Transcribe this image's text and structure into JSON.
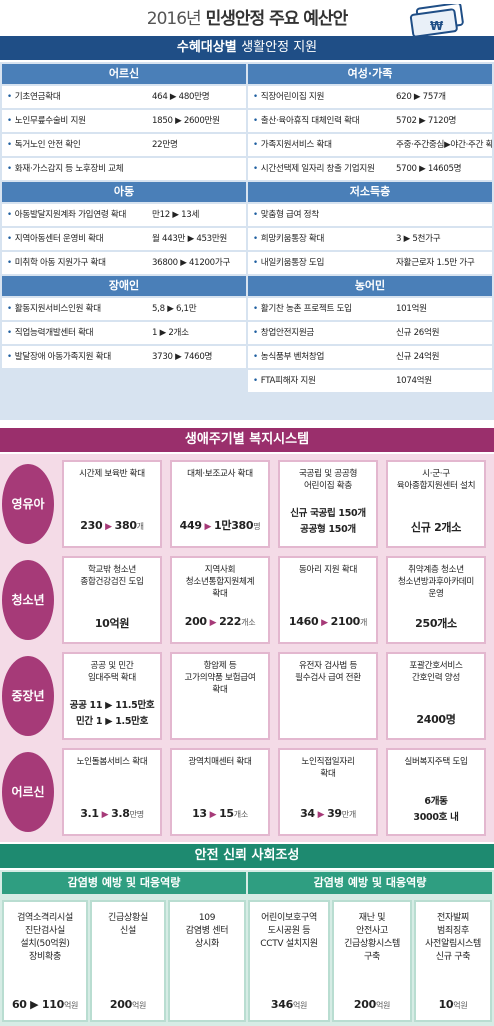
{
  "header": {
    "year": "2016년",
    "title": "민생안정 주요 예산안",
    "money_icon": "won-banknote-icon"
  },
  "sec1": {
    "banner": {
      "bold": "수혜대상별",
      "light": "생활안정 지원"
    },
    "left": [
      {
        "title": "어르신",
        "rows": [
          [
            "기초연금확대",
            "464 ▶ 480만명"
          ],
          [
            "노인무릎수술비 지원",
            "1850 ▶ 2600만원"
          ],
          [
            "독거노인 안전 확인",
            "22만명"
          ],
          [
            "화재·가스감지 등 노후장비 교체",
            ""
          ]
        ]
      },
      {
        "title": "아동",
        "rows": [
          [
            "아동발달지원계좌 가입연령 확대",
            "만12 ▶ 13세"
          ],
          [
            "지역아동센터 운영비 확대",
            "월 443만 ▶ 453만원"
          ],
          [
            "미취학 아동 지원가구 확대",
            "36800 ▶ 41200가구"
          ]
        ]
      },
      {
        "title": "장애인",
        "rows": [
          [
            "활동지원서비스인원 확대",
            "5,8 ▶ 6,1만"
          ],
          [
            "직업능력개발센터 확대",
            "1 ▶ 2개소"
          ],
          [
            "발달장애 아동가족지원 확대",
            "3730 ▶ 7460명"
          ]
        ]
      }
    ],
    "right": [
      {
        "title": "여성·가족",
        "rows": [
          [
            "직장어린이집 지원",
            "620 ▶ 757개"
          ],
          [
            "출산·육아휴직 대체인력 확대",
            "5702 ▶ 7120명"
          ],
          [
            "가족지원서비스 확대",
            "주중·주간중심▶야간·주간 확대"
          ],
          [
            "시간선택제 일자리 창출 기업지원",
            "5700 ▶ 14605명"
          ]
        ]
      },
      {
        "title": "저소득층",
        "rows": [
          [
            "맞춤형 급여 정착",
            ""
          ],
          [
            "희망키움통장 확대",
            "3 ▶ 5천가구"
          ],
          [
            "내일키움통장 도입",
            "자활근로자 1.5만 가구"
          ]
        ]
      },
      {
        "title": "농어민",
        "rows": [
          [
            "활기찬 농촌 프로젝트 도입",
            "101억원"
          ],
          [
            "창업안전지원금",
            "신규 26억원"
          ],
          [
            "농식품부 벤처창업",
            "신규 24억원"
          ],
          [
            "FTA피해자 지원",
            "1074억원"
          ]
        ]
      }
    ]
  },
  "sec2": {
    "banner": "생애주기별 복지시스템",
    "stages": [
      {
        "label": "영유아",
        "cards": [
          {
            "lines": [
              "시간제 보육반 확대"
            ],
            "a": "230",
            "b": "380",
            "unit": "개"
          },
          {
            "lines": [
              "대체·보조교사 확대"
            ],
            "a": "449",
            "b": "1만380",
            "unit": "명"
          },
          {
            "lines": [
              "국공립 및 공공형",
              "어린이집 확충"
            ],
            "extra": [
              "신규 국공립 150개",
              "공공형 150개"
            ]
          },
          {
            "lines": [
              "시·군·구",
              "육아종합지원센터 설치"
            ],
            "single": "신규 2개소"
          }
        ]
      },
      {
        "label": "청소년",
        "cards": [
          {
            "lines": [
              "학교밖 청소년",
              "종합건강검진 도입"
            ],
            "single": "10억원"
          },
          {
            "lines": [
              "지역사회",
              "청소년통합지원체계",
              "확대"
            ],
            "a": "200",
            "b": "222",
            "unit": "개소"
          },
          {
            "lines": [
              "동아리 지원 확대"
            ],
            "a": "1460",
            "b": "2100",
            "unit": "개"
          },
          {
            "lines": [
              "취약계층 청소년",
              "청소년방과후아카데미",
              "운영"
            ],
            "single": "250개소"
          }
        ]
      },
      {
        "label": "중장년",
        "cards": [
          {
            "lines": [
              "공공 및 민간",
              "임대주택 확대"
            ],
            "extra": [
              "공공 11 ▶ 11.5만호",
              "민간 1 ▶ 1.5만호"
            ]
          },
          {
            "lines": [
              "항암제 등",
              "고가의약품 보험급여",
              "확대"
            ]
          },
          {
            "lines": [
              "유전자 검사법 등",
              "필수검사 급여 전환"
            ]
          },
          {
            "lines": [
              "포괄간호서비스",
              "간호인력 양성"
            ],
            "single": "2400명"
          }
        ]
      },
      {
        "label": "어르신",
        "cards": [
          {
            "lines": [
              "노인돌봄서비스 확대"
            ],
            "a": "3.1",
            "b": "3.8",
            "unit": "만명"
          },
          {
            "lines": [
              "광역치매센터 확대"
            ],
            "a": "13",
            "b": "15",
            "unit": "개소"
          },
          {
            "lines": [
              "노인직접일자리",
              "확대"
            ],
            "a": "34",
            "b": "39",
            "unit": "만개"
          },
          {
            "lines": [
              "실버복지주택 도입"
            ],
            "extra": [
              "6개동",
              "3000호 내"
            ]
          }
        ]
      }
    ]
  },
  "sec3": {
    "banner": "안전 신뢰 사회조성",
    "sub": [
      "감염병 예방 및 대응역량",
      "감염병 예방 및 대응역량"
    ],
    "cards": [
      {
        "lines": [
          "검역소격리시설",
          "진단검사실",
          "설치(50억원)",
          "장비확충"
        ],
        "big": "60 ▶ 110",
        "unit": "억원"
      },
      {
        "lines": [
          "긴급상황실",
          "신설"
        ],
        "big": "200",
        "unit": "억원"
      },
      {
        "lines": [
          "109",
          "감염병 센터",
          "상시화"
        ],
        "big": "",
        "unit": ""
      },
      {
        "lines": [
          "어린이보호구역",
          "도시공원 등",
          "CCTV 설치지원"
        ],
        "big": "346",
        "unit": "억원"
      },
      {
        "lines": [
          "재난 및",
          "안전사고",
          "긴급상황시스템",
          "구축"
        ],
        "big": "200",
        "unit": "억원"
      },
      {
        "lines": [
          "전자발찌",
          "범죄징후",
          "사전알림시스템",
          "신규 구축"
        ],
        "big": "10",
        "unit": "억원"
      }
    ]
  }
}
